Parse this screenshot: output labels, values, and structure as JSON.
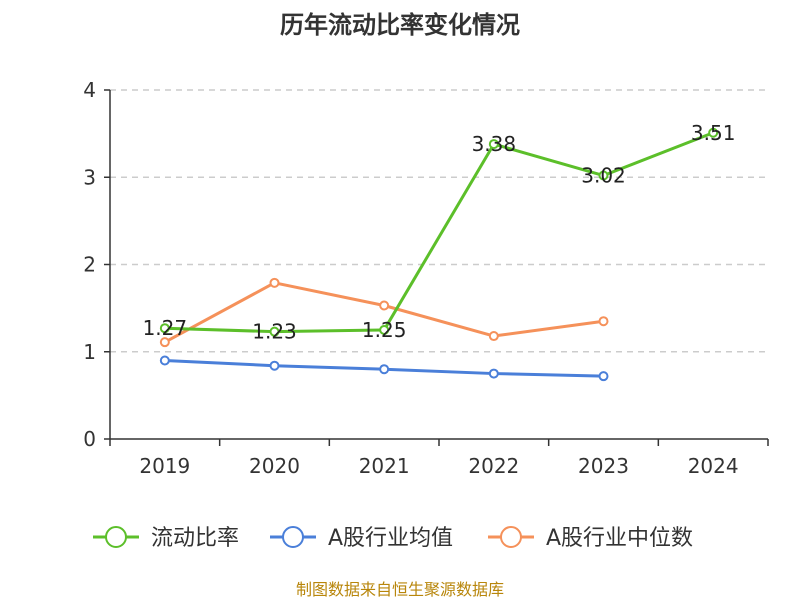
{
  "chart_data": {
    "type": "line",
    "title": "历年流动比率变化情况",
    "categories": [
      "2019",
      "2020",
      "2021",
      "2022",
      "2023",
      "2024"
    ],
    "ylim": [
      0,
      4
    ],
    "yticks": [
      "0",
      "1",
      "2",
      "3",
      "4"
    ],
    "grid": true,
    "legend_position": "bottom",
    "series": [
      {
        "name": "流动比率",
        "color": "#5cbf2a",
        "values": [
          1.27,
          1.23,
          1.25,
          3.38,
          3.02,
          3.51
        ],
        "labels": [
          "1.27",
          "1.23",
          "1.25",
          "3.38",
          "3.02",
          "3.51"
        ]
      },
      {
        "name": "A股行业均值",
        "color": "#4a7fd9",
        "values": [
          0.9,
          0.84,
          0.8,
          0.75,
          0.72,
          null
        ]
      },
      {
        "name": "A股行业中位数",
        "color": "#f5915a",
        "values": [
          1.11,
          1.79,
          1.53,
          1.18,
          1.35,
          null
        ]
      }
    ]
  },
  "source": "制图数据来自恒生聚源数据库"
}
